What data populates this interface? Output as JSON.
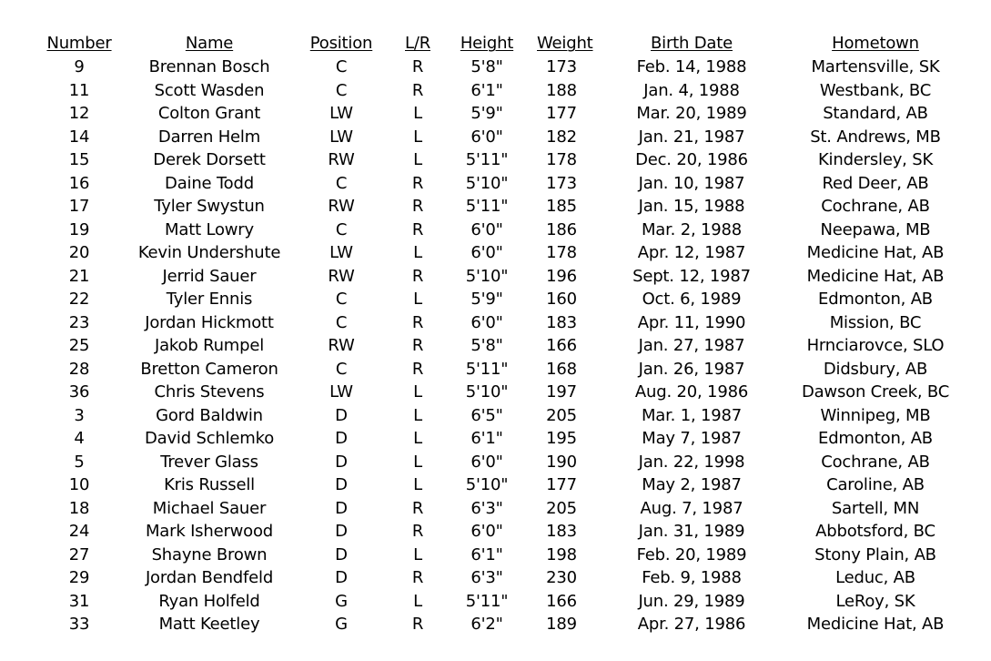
{
  "headers": {
    "number": "Number",
    "name": "Name",
    "position": "Position",
    "lr": "L/R",
    "height": "Height",
    "weight": "Weight",
    "birth_date": "Birth Date",
    "hometown": "Hometown"
  },
  "rows": [
    {
      "number": "9",
      "name": "Brennan Bosch",
      "position": "C",
      "lr": "R",
      "height": "5'8\"",
      "weight": "173",
      "birth_date": "Feb. 14, 1988",
      "hometown": "Martensville, SK"
    },
    {
      "number": "11",
      "name": "Scott Wasden",
      "position": "C",
      "lr": "R",
      "height": "6'1\"",
      "weight": "188",
      "birth_date": "Jan. 4, 1988",
      "hometown": "Westbank, BC"
    },
    {
      "number": "12",
      "name": "Colton Grant",
      "position": "LW",
      "lr": "L",
      "height": "5'9\"",
      "weight": "177",
      "birth_date": "Mar. 20, 1989",
      "hometown": "Standard, AB"
    },
    {
      "number": "14",
      "name": "Darren Helm",
      "position": "LW",
      "lr": "L",
      "height": "6'0\"",
      "weight": "182",
      "birth_date": "Jan. 21, 1987",
      "hometown": "St. Andrews, MB"
    },
    {
      "number": "15",
      "name": "Derek Dorsett",
      "position": "RW",
      "lr": "L",
      "height": "5'11\"",
      "weight": "178",
      "birth_date": "Dec. 20, 1986",
      "hometown": "Kindersley, SK"
    },
    {
      "number": "16",
      "name": "Daine Todd",
      "position": "C",
      "lr": "R",
      "height": "5'10\"",
      "weight": "173",
      "birth_date": "Jan. 10, 1987",
      "hometown": "Red Deer, AB"
    },
    {
      "number": "17",
      "name": "Tyler Swystun",
      "position": "RW",
      "lr": "R",
      "height": "5'11\"",
      "weight": "185",
      "birth_date": "Jan. 15, 1988",
      "hometown": "Cochrane, AB"
    },
    {
      "number": "19",
      "name": "Matt Lowry",
      "position": "C",
      "lr": "R",
      "height": "6'0\"",
      "weight": "186",
      "birth_date": "Mar. 2, 1988",
      "hometown": "Neepawa, MB"
    },
    {
      "number": "20",
      "name": "Kevin Undershute",
      "position": "LW",
      "lr": "L",
      "height": "6'0\"",
      "weight": "178",
      "birth_date": "Apr. 12, 1987",
      "hometown": "Medicine Hat, AB"
    },
    {
      "number": "21",
      "name": "Jerrid Sauer",
      "position": "RW",
      "lr": "R",
      "height": "5'10\"",
      "weight": "196",
      "birth_date": "Sept. 12, 1987",
      "hometown": "Medicine Hat, AB"
    },
    {
      "number": "22",
      "name": "Tyler Ennis",
      "position": "C",
      "lr": "L",
      "height": "5'9\"",
      "weight": "160",
      "birth_date": "Oct. 6, 1989",
      "hometown": "Edmonton, AB"
    },
    {
      "number": "23",
      "name": "Jordan Hickmott",
      "position": "C",
      "lr": "R",
      "height": "6'0\"",
      "weight": "183",
      "birth_date": "Apr. 11, 1990",
      "hometown": "Mission, BC"
    },
    {
      "number": "25",
      "name": "Jakob Rumpel",
      "position": "RW",
      "lr": "R",
      "height": "5'8\"",
      "weight": "166",
      "birth_date": "Jan. 27, 1987",
      "hometown": "Hrnciarovce, SLO"
    },
    {
      "number": "28",
      "name": "Bretton Cameron",
      "position": "C",
      "lr": "R",
      "height": "5'11\"",
      "weight": "168",
      "birth_date": "Jan. 26, 1987",
      "hometown": "Didsbury, AB"
    },
    {
      "number": "36",
      "name": "Chris Stevens",
      "position": "LW",
      "lr": "L",
      "height": "5'10\"",
      "weight": "197",
      "birth_date": "Aug. 20, 1986",
      "hometown": "Dawson Creek, BC"
    },
    {
      "number": "3",
      "name": "Gord Baldwin",
      "position": "D",
      "lr": "L",
      "height": "6'5\"",
      "weight": "205",
      "birth_date": "Mar. 1, 1987",
      "hometown": "Winnipeg, MB"
    },
    {
      "number": "4",
      "name": "David Schlemko",
      "position": "D",
      "lr": "L",
      "height": "6'1\"",
      "weight": "195",
      "birth_date": "May 7, 1987",
      "hometown": "Edmonton, AB"
    },
    {
      "number": "5",
      "name": "Trever Glass",
      "position": "D",
      "lr": "L",
      "height": "6'0\"",
      "weight": "190",
      "birth_date": "Jan. 22, 1998",
      "hometown": "Cochrane, AB"
    },
    {
      "number": "10",
      "name": "Kris Russell",
      "position": "D",
      "lr": "L",
      "height": "5'10\"",
      "weight": "177",
      "birth_date": "May 2, 1987",
      "hometown": "Caroline, AB"
    },
    {
      "number": "18",
      "name": "Michael Sauer",
      "position": "D",
      "lr": "R",
      "height": "6'3\"",
      "weight": "205",
      "birth_date": "Aug. 7, 1987",
      "hometown": "Sartell, MN"
    },
    {
      "number": "24",
      "name": "Mark Isherwood",
      "position": "D",
      "lr": "R",
      "height": "6'0\"",
      "weight": "183",
      "birth_date": "Jan. 31, 1989",
      "hometown": "Abbotsford, BC"
    },
    {
      "number": "27",
      "name": "Shayne Brown",
      "position": "D",
      "lr": "L",
      "height": "6'1\"",
      "weight": "198",
      "birth_date": "Feb. 20, 1989",
      "hometown": "Stony Plain, AB"
    },
    {
      "number": "29",
      "name": "Jordan Bendfeld",
      "position": "D",
      "lr": "R",
      "height": "6'3\"",
      "weight": "230",
      "birth_date": "Feb. 9, 1988",
      "hometown": "Leduc, AB"
    },
    {
      "number": "31",
      "name": "Ryan Holfeld",
      "position": "G",
      "lr": "L",
      "height": "5'11\"",
      "weight": "166",
      "birth_date": "Jun. 29, 1989",
      "hometown": "LeRoy, SK"
    },
    {
      "number": "33",
      "name": "Matt Keetley",
      "position": "G",
      "lr": "R",
      "height": "6'2\"",
      "weight": "189",
      "birth_date": "Apr. 27, 1986",
      "hometown": "Medicine Hat, AB"
    }
  ]
}
